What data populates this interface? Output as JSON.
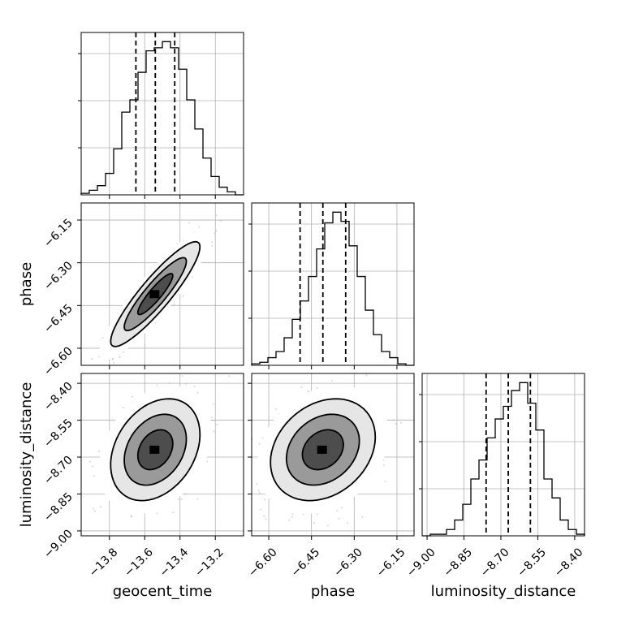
{
  "chart_data": {
    "type": "corner",
    "parameters": [
      "geocent_time",
      "phase",
      "luminosity_distance"
    ],
    "ticks": {
      "geocent_time": [
        "−13.8",
        "−13.6",
        "−13.4",
        "−13.2"
      ],
      "phase": [
        "−6.60",
        "−6.45",
        "−6.30",
        "−6.15"
      ],
      "luminosity_distance": [
        "−9.00",
        "−8.85",
        "−8.70",
        "−8.55",
        "−8.40"
      ]
    },
    "ranges": {
      "geocent_time": [
        -13.96,
        -13.04
      ],
      "phase": [
        -6.66,
        -6.09
      ],
      "luminosity_distance": [
        -9.02,
        -8.36
      ]
    },
    "quantiles": {
      "geocent_time": [
        -13.65,
        -13.54,
        -13.43
      ],
      "phase": [
        -6.49,
        -6.41,
        -6.33
      ],
      "luminosity_distance": [
        -8.76,
        -8.67,
        -8.58
      ]
    },
    "histograms": {
      "geocent_time": [
        0.01,
        0.03,
        0.06,
        0.14,
        0.3,
        0.54,
        0.62,
        0.8,
        0.94,
        0.96,
        1.0,
        0.96,
        0.82,
        0.62,
        0.43,
        0.24,
        0.12,
        0.05,
        0.02,
        0.0
      ],
      "phase": [
        0.01,
        0.02,
        0.05,
        0.09,
        0.18,
        0.3,
        0.42,
        0.58,
        0.76,
        0.93,
        1.0,
        0.94,
        0.78,
        0.58,
        0.36,
        0.2,
        0.09,
        0.05,
        0.01,
        0.0
      ],
      "luminosity_distance": [
        0.0,
        0.01,
        0.01,
        0.04,
        0.1,
        0.2,
        0.36,
        0.48,
        0.62,
        0.74,
        0.82,
        0.92,
        0.97,
        0.84,
        0.67,
        0.36,
        0.24,
        0.1,
        0.04,
        0.01
      ]
    },
    "correlations": {
      "phase|geocent_time": 0.9,
      "luminosity_distance|geocent_time": 0.3,
      "luminosity_distance|phase": 0.25
    },
    "grid": true,
    "sample_color": "#808080",
    "line_color": "#000000"
  }
}
